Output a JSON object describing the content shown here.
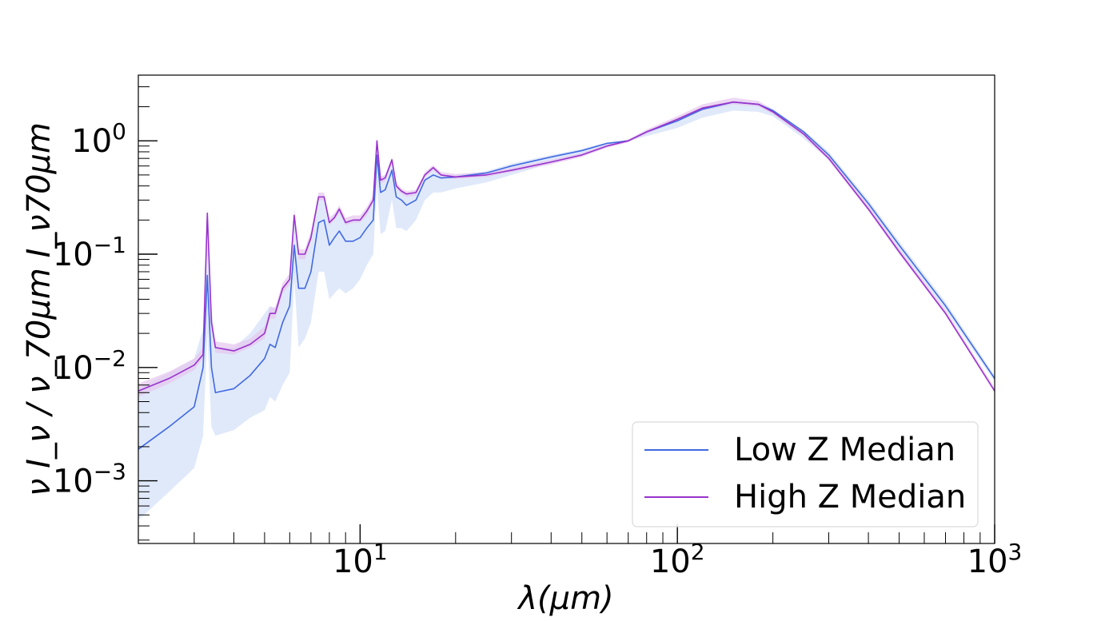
{
  "chart_data": {
    "type": "line",
    "title": "",
    "xlabel": "λ(μm)",
    "ylabel": "ν I_ν / ν_70μm I_ν70μm",
    "x_scale": "log",
    "y_scale": "log",
    "xlim": [
      2.0,
      1000
    ],
    "ylim": [
      0.00028,
      3.8
    ],
    "grid": false,
    "legend_position": "lower-right",
    "x_ticks": [
      {
        "value": 10,
        "base": "10",
        "exp": "1"
      },
      {
        "value": 100,
        "base": "10",
        "exp": "2"
      },
      {
        "value": 1000,
        "base": "10",
        "exp": "3"
      }
    ],
    "y_ticks": [
      {
        "value": 0.001,
        "base": "10",
        "exp": "−3"
      },
      {
        "value": 0.01,
        "base": "10",
        "exp": "−2"
      },
      {
        "value": 0.1,
        "base": "10",
        "exp": "−1"
      },
      {
        "value": 1,
        "base": "10",
        "exp": "0"
      }
    ],
    "series": [
      {
        "name": "Low Z Median",
        "color": "#4169e1",
        "band_color": "#c6d7f5",
        "x": [
          2.0,
          2.5,
          3.0,
          3.2,
          3.3,
          3.4,
          3.5,
          4.0,
          4.5,
          5.0,
          5.2,
          5.4,
          5.7,
          6.0,
          6.2,
          6.4,
          6.7,
          7.0,
          7.4,
          7.7,
          8.0,
          8.3,
          8.6,
          9.0,
          9.5,
          10.0,
          10.5,
          11.0,
          11.3,
          11.6,
          12.0,
          12.6,
          13.0,
          13.5,
          14.0,
          15.0,
          16.0,
          17.0,
          18.0,
          20.0,
          25.0,
          30.0,
          40.0,
          50.0,
          60.0,
          70.0,
          80.0,
          100.0,
          120.0,
          150.0,
          180.0,
          200.0,
          250.0,
          300.0,
          400.0,
          500.0,
          700.0,
          1000.0
        ],
        "y": [
          0.0019,
          0.003,
          0.0045,
          0.01,
          0.065,
          0.01,
          0.006,
          0.0065,
          0.0085,
          0.012,
          0.016,
          0.015,
          0.025,
          0.035,
          0.12,
          0.05,
          0.05,
          0.07,
          0.19,
          0.2,
          0.12,
          0.14,
          0.16,
          0.13,
          0.13,
          0.14,
          0.17,
          0.2,
          0.75,
          0.35,
          0.37,
          0.55,
          0.32,
          0.3,
          0.27,
          0.3,
          0.45,
          0.5,
          0.47,
          0.48,
          0.52,
          0.6,
          0.72,
          0.82,
          0.95,
          1.0,
          1.2,
          1.5,
          1.9,
          2.2,
          2.1,
          1.85,
          1.2,
          0.75,
          0.28,
          0.12,
          0.035,
          0.008
        ],
        "lower": [
          0.00045,
          0.0008,
          0.0013,
          0.0025,
          0.02,
          0.003,
          0.0025,
          0.0028,
          0.0036,
          0.0042,
          0.0055,
          0.005,
          0.007,
          0.009,
          0.06,
          0.015,
          0.018,
          0.025,
          0.07,
          0.07,
          0.04,
          0.045,
          0.05,
          0.045,
          0.05,
          0.06,
          0.08,
          0.1,
          0.4,
          0.15,
          0.16,
          0.3,
          0.17,
          0.17,
          0.16,
          0.2,
          0.3,
          0.35,
          0.35,
          0.38,
          0.43,
          0.5,
          0.63,
          0.76,
          0.9,
          1.0,
          1.1,
          1.3,
          1.6,
          1.85,
          1.8,
          1.65,
          1.05,
          0.68,
          0.25,
          0.11,
          0.032,
          0.0075
        ],
        "upper": [
          0.0065,
          0.009,
          0.012,
          0.022,
          0.23,
          0.035,
          0.015,
          0.015,
          0.02,
          0.03,
          0.035,
          0.033,
          0.05,
          0.06,
          0.22,
          0.1,
          0.1,
          0.15,
          0.32,
          0.33,
          0.2,
          0.22,
          0.25,
          0.2,
          0.2,
          0.2,
          0.24,
          0.3,
          0.95,
          0.48,
          0.5,
          0.68,
          0.4,
          0.37,
          0.34,
          0.35,
          0.5,
          0.57,
          0.5,
          0.5,
          0.54,
          0.63,
          0.75,
          0.85,
          0.97,
          1.0,
          1.22,
          1.55,
          1.95,
          2.25,
          2.15,
          1.9,
          1.25,
          0.8,
          0.3,
          0.13,
          0.038,
          0.0085
        ]
      },
      {
        "name": "High Z Median",
        "color": "#9932cc",
        "band_color": "#e6c6ee",
        "x": [
          2.0,
          2.5,
          3.0,
          3.2,
          3.3,
          3.4,
          3.5,
          4.0,
          4.5,
          5.0,
          5.2,
          5.4,
          5.7,
          6.0,
          6.2,
          6.4,
          6.7,
          7.0,
          7.4,
          7.7,
          8.0,
          8.3,
          8.6,
          9.0,
          9.5,
          10.0,
          10.5,
          11.0,
          11.3,
          11.6,
          12.0,
          12.6,
          13.0,
          13.5,
          14.0,
          15.0,
          16.0,
          17.0,
          18.0,
          20.0,
          25.0,
          30.0,
          40.0,
          50.0,
          60.0,
          70.0,
          80.0,
          100.0,
          120.0,
          150.0,
          180.0,
          200.0,
          250.0,
          300.0,
          400.0,
          500.0,
          700.0,
          1000.0
        ],
        "y": [
          0.0062,
          0.008,
          0.0105,
          0.013,
          0.23,
          0.025,
          0.015,
          0.014,
          0.016,
          0.02,
          0.03,
          0.03,
          0.05,
          0.06,
          0.22,
          0.1,
          0.1,
          0.14,
          0.32,
          0.32,
          0.19,
          0.21,
          0.25,
          0.19,
          0.2,
          0.2,
          0.24,
          0.3,
          1.0,
          0.45,
          0.47,
          0.68,
          0.4,
          0.36,
          0.34,
          0.35,
          0.5,
          0.58,
          0.5,
          0.48,
          0.5,
          0.55,
          0.65,
          0.75,
          0.9,
          1.0,
          1.2,
          1.55,
          1.95,
          2.2,
          2.1,
          1.8,
          1.15,
          0.7,
          0.25,
          0.105,
          0.03,
          0.0062
        ],
        "lower": [
          0.0055,
          0.0072,
          0.0095,
          0.012,
          0.21,
          0.022,
          0.0135,
          0.013,
          0.015,
          0.018,
          0.027,
          0.027,
          0.045,
          0.054,
          0.2,
          0.09,
          0.09,
          0.13,
          0.3,
          0.3,
          0.18,
          0.2,
          0.23,
          0.18,
          0.19,
          0.19,
          0.22,
          0.28,
          0.95,
          0.42,
          0.44,
          0.64,
          0.38,
          0.34,
          0.32,
          0.33,
          0.48,
          0.55,
          0.48,
          0.46,
          0.48,
          0.53,
          0.62,
          0.72,
          0.87,
          0.97,
          1.15,
          1.5,
          1.85,
          2.1,
          2.0,
          1.72,
          1.1,
          0.67,
          0.24,
          0.1,
          0.029,
          0.006
        ],
        "upper": [
          0.0072,
          0.0092,
          0.012,
          0.015,
          0.26,
          0.029,
          0.017,
          0.016,
          0.018,
          0.023,
          0.034,
          0.034,
          0.056,
          0.067,
          0.25,
          0.11,
          0.11,
          0.16,
          0.35,
          0.35,
          0.21,
          0.23,
          0.27,
          0.21,
          0.22,
          0.22,
          0.26,
          0.33,
          1.05,
          0.48,
          0.5,
          0.72,
          0.43,
          0.38,
          0.36,
          0.37,
          0.53,
          0.61,
          0.53,
          0.51,
          0.53,
          0.58,
          0.68,
          0.78,
          0.93,
          1.03,
          1.26,
          1.65,
          2.1,
          2.4,
          2.25,
          1.9,
          1.22,
          0.74,
          0.27,
          0.112,
          0.032,
          0.0066
        ]
      }
    ]
  }
}
